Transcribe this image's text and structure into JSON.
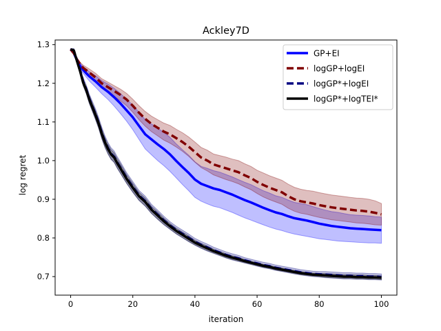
{
  "chart_data": {
    "type": "line",
    "title": "Ackley7D",
    "xlabel": "iteration",
    "ylabel": "log regret",
    "xlim": [
      -5,
      105
    ],
    "ylim": [
      0.652,
      1.312
    ],
    "xticks": [
      0,
      20,
      40,
      60,
      80,
      100
    ],
    "yticks": [
      0.7,
      0.8,
      0.9,
      1.0,
      1.1,
      1.2,
      1.3
    ],
    "xtick_labels": [
      "0",
      "20",
      "40",
      "60",
      "80",
      "100"
    ],
    "ytick_labels": [
      "0.7",
      "0.8",
      "0.9",
      "1.0",
      "1.1",
      "1.2",
      "1.3"
    ],
    "legend_position": "top-right",
    "grid": false,
    "series": [
      {
        "name": "GP+EI",
        "color": "#0000ff",
        "style": "solid",
        "band": true,
        "x": [
          0,
          1,
          2,
          3,
          4,
          5,
          6,
          8,
          10,
          12,
          14,
          16,
          18,
          20,
          22,
          24,
          26,
          28,
          30,
          32,
          34,
          36,
          38,
          40,
          42,
          44,
          46,
          48,
          50,
          52,
          54,
          56,
          58,
          60,
          62,
          64,
          66,
          68,
          70,
          72,
          74,
          76,
          78,
          80,
          82,
          84,
          86,
          88,
          90,
          92,
          94,
          96,
          98,
          100
        ],
        "y": [
          1.288,
          1.278,
          1.26,
          1.245,
          1.235,
          1.226,
          1.218,
          1.205,
          1.19,
          1.178,
          1.164,
          1.148,
          1.13,
          1.112,
          1.09,
          1.068,
          1.055,
          1.042,
          1.03,
          1.016,
          0.999,
          0.983,
          0.968,
          0.951,
          0.94,
          0.934,
          0.928,
          0.924,
          0.918,
          0.912,
          0.905,
          0.898,
          0.892,
          0.885,
          0.878,
          0.872,
          0.866,
          0.862,
          0.856,
          0.851,
          0.848,
          0.845,
          0.841,
          0.837,
          0.834,
          0.831,
          0.829,
          0.827,
          0.825,
          0.824,
          0.823,
          0.822,
          0.821,
          0.82
        ],
        "lower": [
          1.287,
          1.275,
          1.255,
          1.238,
          1.226,
          1.216,
          1.206,
          1.19,
          1.173,
          1.158,
          1.141,
          1.122,
          1.102,
          1.08,
          1.055,
          1.03,
          1.015,
          1.0,
          0.987,
          0.972,
          0.955,
          0.938,
          0.922,
          0.905,
          0.895,
          0.888,
          0.882,
          0.878,
          0.872,
          0.866,
          0.859,
          0.852,
          0.846,
          0.84,
          0.834,
          0.828,
          0.823,
          0.819,
          0.814,
          0.81,
          0.807,
          0.804,
          0.801,
          0.798,
          0.796,
          0.794,
          0.792,
          0.791,
          0.79,
          0.789,
          0.788,
          0.787,
          0.787,
          0.786
        ],
        "upper": [
          1.289,
          1.282,
          1.266,
          1.252,
          1.244,
          1.236,
          1.23,
          1.22,
          1.207,
          1.198,
          1.187,
          1.174,
          1.158,
          1.144,
          1.125,
          1.106,
          1.095,
          1.084,
          1.073,
          1.06,
          1.043,
          1.028,
          1.014,
          0.997,
          0.985,
          0.98,
          0.974,
          0.97,
          0.964,
          0.958,
          0.951,
          0.944,
          0.938,
          0.93,
          0.922,
          0.916,
          0.909,
          0.905,
          0.898,
          0.892,
          0.889,
          0.886,
          0.881,
          0.876,
          0.872,
          0.868,
          0.866,
          0.863,
          0.86,
          0.859,
          0.858,
          0.857,
          0.855,
          0.854
        ]
      },
      {
        "name": "logGP+logEI",
        "color": "#800000",
        "style": "dashed",
        "band": true,
        "x": [
          0,
          1,
          2,
          3,
          4,
          5,
          6,
          8,
          10,
          12,
          14,
          16,
          18,
          20,
          22,
          24,
          26,
          28,
          30,
          32,
          34,
          36,
          38,
          40,
          42,
          44,
          46,
          48,
          50,
          52,
          54,
          56,
          58,
          60,
          62,
          64,
          66,
          68,
          70,
          72,
          74,
          76,
          78,
          80,
          82,
          84,
          86,
          88,
          90,
          92,
          94,
          96,
          98,
          100
        ],
        "y": [
          1.288,
          1.278,
          1.262,
          1.25,
          1.24,
          1.234,
          1.228,
          1.215,
          1.2,
          1.19,
          1.18,
          1.17,
          1.158,
          1.142,
          1.124,
          1.108,
          1.095,
          1.085,
          1.075,
          1.068,
          1.058,
          1.048,
          1.036,
          1.022,
          1.008,
          1.0,
          0.99,
          0.985,
          0.98,
          0.975,
          0.97,
          0.962,
          0.955,
          0.945,
          0.937,
          0.93,
          0.924,
          0.918,
          0.908,
          0.9,
          0.895,
          0.892,
          0.889,
          0.885,
          0.882,
          0.879,
          0.877,
          0.875,
          0.873,
          0.871,
          0.87,
          0.868,
          0.865,
          0.861
        ],
        "lower": [
          1.287,
          1.276,
          1.258,
          1.245,
          1.233,
          1.226,
          1.219,
          1.204,
          1.188,
          1.177,
          1.166,
          1.155,
          1.142,
          1.125,
          1.106,
          1.089,
          1.075,
          1.064,
          1.053,
          1.045,
          1.035,
          1.024,
          1.011,
          0.996,
          0.982,
          0.973,
          0.963,
          0.957,
          0.951,
          0.946,
          0.94,
          0.932,
          0.925,
          0.915,
          0.906,
          0.899,
          0.893,
          0.887,
          0.877,
          0.869,
          0.864,
          0.861,
          0.857,
          0.853,
          0.85,
          0.847,
          0.845,
          0.843,
          0.841,
          0.839,
          0.838,
          0.836,
          0.834,
          0.833
        ],
        "upper": [
          1.289,
          1.281,
          1.266,
          1.255,
          1.247,
          1.242,
          1.237,
          1.226,
          1.212,
          1.203,
          1.194,
          1.185,
          1.174,
          1.159,
          1.142,
          1.127,
          1.115,
          1.106,
          1.097,
          1.091,
          1.081,
          1.072,
          1.061,
          1.048,
          1.034,
          1.027,
          1.017,
          1.013,
          1.009,
          1.004,
          1.0,
          0.992,
          0.985,
          0.975,
          0.968,
          0.961,
          0.955,
          0.949,
          0.939,
          0.931,
          0.926,
          0.923,
          0.921,
          0.917,
          0.914,
          0.911,
          0.909,
          0.907,
          0.905,
          0.903,
          0.902,
          0.9,
          0.896,
          0.889
        ]
      },
      {
        "name": "logGP*+logEI",
        "color": "#000080",
        "style": "dashed",
        "band": true,
        "x": [
          0,
          1,
          2,
          3,
          4,
          5,
          6,
          7,
          8,
          9,
          10,
          11,
          12,
          13,
          14,
          15,
          16,
          18,
          20,
          22,
          24,
          26,
          28,
          30,
          32,
          34,
          36,
          38,
          40,
          42,
          44,
          46,
          48,
          50,
          52,
          54,
          56,
          58,
          60,
          62,
          64,
          66,
          68,
          70,
          72,
          74,
          76,
          78,
          80,
          82,
          84,
          86,
          88,
          90,
          92,
          94,
          96,
          98,
          100
        ],
        "y": [
          1.288,
          1.285,
          1.26,
          1.235,
          1.205,
          1.185,
          1.16,
          1.14,
          1.12,
          1.098,
          1.072,
          1.05,
          1.032,
          1.018,
          1.01,
          0.995,
          0.982,
          0.955,
          0.932,
          0.91,
          0.895,
          0.875,
          0.86,
          0.845,
          0.832,
          0.82,
          0.81,
          0.8,
          0.79,
          0.782,
          0.775,
          0.768,
          0.762,
          0.756,
          0.751,
          0.747,
          0.742,
          0.738,
          0.734,
          0.73,
          0.727,
          0.723,
          0.72,
          0.717,
          0.714,
          0.711,
          0.709,
          0.707,
          0.706,
          0.705,
          0.704,
          0.703,
          0.702,
          0.702,
          0.701,
          0.701,
          0.7,
          0.7,
          0.699
        ],
        "lower": [
          1.287,
          1.28,
          1.253,
          1.226,
          1.195,
          1.174,
          1.148,
          1.127,
          1.106,
          1.084,
          1.057,
          1.035,
          1.017,
          1.003,
          0.995,
          0.98,
          0.967,
          0.941,
          0.918,
          0.897,
          0.882,
          0.863,
          0.848,
          0.834,
          0.822,
          0.81,
          0.8,
          0.79,
          0.781,
          0.773,
          0.766,
          0.76,
          0.754,
          0.748,
          0.743,
          0.739,
          0.735,
          0.731,
          0.727,
          0.723,
          0.72,
          0.716,
          0.713,
          0.71,
          0.707,
          0.704,
          0.702,
          0.7,
          0.699,
          0.697,
          0.696,
          0.695,
          0.694,
          0.694,
          0.693,
          0.693,
          0.692,
          0.692,
          0.691
        ],
        "upper": [
          1.289,
          1.29,
          1.267,
          1.244,
          1.215,
          1.196,
          1.172,
          1.153,
          1.134,
          1.112,
          1.087,
          1.065,
          1.047,
          1.033,
          1.025,
          1.01,
          0.997,
          0.969,
          0.946,
          0.923,
          0.908,
          0.887,
          0.872,
          0.856,
          0.842,
          0.83,
          0.82,
          0.81,
          0.799,
          0.791,
          0.784,
          0.776,
          0.77,
          0.764,
          0.759,
          0.755,
          0.749,
          0.745,
          0.741,
          0.737,
          0.734,
          0.73,
          0.727,
          0.724,
          0.721,
          0.718,
          0.716,
          0.714,
          0.713,
          0.713,
          0.712,
          0.711,
          0.71,
          0.71,
          0.709,
          0.709,
          0.708,
          0.708,
          0.707
        ]
      },
      {
        "name": "logGP*+logTEI*",
        "color": "#000000",
        "style": "solid",
        "band": true,
        "x": [
          0,
          1,
          2,
          3,
          4,
          5,
          6,
          7,
          8,
          9,
          10,
          11,
          12,
          13,
          14,
          15,
          16,
          18,
          20,
          22,
          24,
          26,
          28,
          30,
          32,
          34,
          36,
          38,
          40,
          42,
          44,
          46,
          48,
          50,
          52,
          54,
          56,
          58,
          60,
          62,
          64,
          66,
          68,
          70,
          72,
          74,
          76,
          78,
          80,
          82,
          84,
          86,
          88,
          90,
          92,
          94,
          96,
          98,
          100
        ],
        "y": [
          1.288,
          1.285,
          1.258,
          1.232,
          1.202,
          1.183,
          1.158,
          1.138,
          1.118,
          1.096,
          1.07,
          1.048,
          1.03,
          1.016,
          1.008,
          0.993,
          0.98,
          0.953,
          0.93,
          0.908,
          0.893,
          0.873,
          0.858,
          0.843,
          0.83,
          0.818,
          0.808,
          0.798,
          0.788,
          0.78,
          0.773,
          0.766,
          0.76,
          0.754,
          0.749,
          0.745,
          0.74,
          0.736,
          0.732,
          0.728,
          0.725,
          0.721,
          0.718,
          0.715,
          0.712,
          0.709,
          0.707,
          0.705,
          0.704,
          0.703,
          0.702,
          0.701,
          0.7,
          0.7,
          0.699,
          0.699,
          0.698,
          0.698,
          0.697
        ],
        "lower": [
          1.287,
          1.281,
          1.252,
          1.225,
          1.194,
          1.174,
          1.148,
          1.128,
          1.107,
          1.085,
          1.058,
          1.036,
          1.018,
          1.004,
          0.996,
          0.981,
          0.968,
          0.942,
          0.919,
          0.898,
          0.883,
          0.864,
          0.849,
          0.835,
          0.823,
          0.811,
          0.801,
          0.791,
          0.782,
          0.774,
          0.767,
          0.761,
          0.755,
          0.749,
          0.744,
          0.74,
          0.736,
          0.732,
          0.728,
          0.724,
          0.721,
          0.717,
          0.714,
          0.711,
          0.708,
          0.705,
          0.703,
          0.701,
          0.7,
          0.698,
          0.697,
          0.696,
          0.695,
          0.695,
          0.694,
          0.694,
          0.693,
          0.693,
          0.692
        ],
        "upper": [
          1.289,
          1.289,
          1.264,
          1.239,
          1.21,
          1.192,
          1.168,
          1.148,
          1.129,
          1.107,
          1.082,
          1.06,
          1.042,
          1.028,
          1.02,
          1.005,
          0.992,
          0.964,
          0.941,
          0.918,
          0.903,
          0.882,
          0.867,
          0.851,
          0.837,
          0.825,
          0.815,
          0.805,
          0.794,
          0.786,
          0.779,
          0.771,
          0.765,
          0.759,
          0.754,
          0.75,
          0.744,
          0.74,
          0.736,
          0.732,
          0.729,
          0.725,
          0.722,
          0.719,
          0.716,
          0.713,
          0.711,
          0.709,
          0.708,
          0.708,
          0.707,
          0.706,
          0.705,
          0.705,
          0.704,
          0.704,
          0.703,
          0.703,
          0.702
        ]
      }
    ]
  }
}
